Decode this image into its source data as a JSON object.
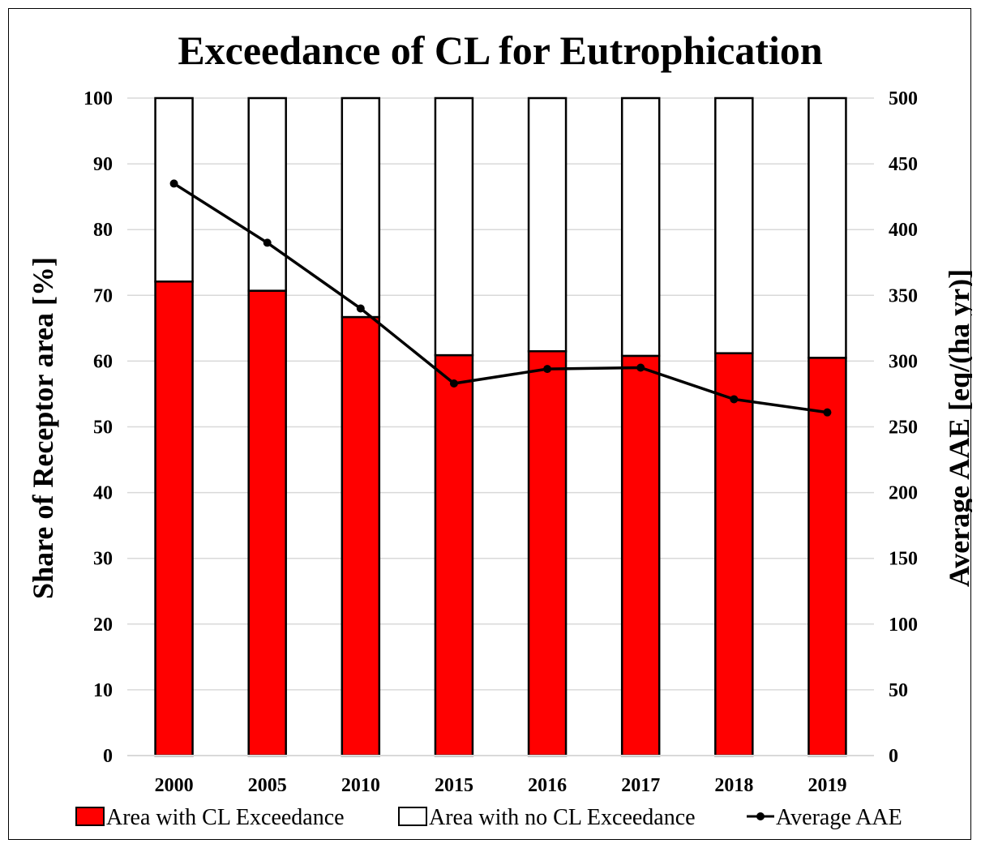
{
  "chart_data": {
    "type": "bar",
    "stacked": true,
    "title": "Exceedance of CL for Eutrophication",
    "categories": [
      "2000",
      "2005",
      "2010",
      "2015",
      "2016",
      "2017",
      "2018",
      "2019"
    ],
    "series": [
      {
        "name": "Area with CL Exceedance",
        "type": "bar",
        "axis": "left",
        "color": "#ff0000",
        "values": [
          72.1,
          70.7,
          66.7,
          60.9,
          61.5,
          60.8,
          61.2,
          60.5
        ]
      },
      {
        "name": "Area with no CL Exceedance",
        "type": "bar",
        "axis": "left",
        "color": "#ffffff",
        "values": [
          27.9,
          29.3,
          33.3,
          39.1,
          38.5,
          39.2,
          38.8,
          39.5
        ]
      },
      {
        "name": "Average AAE",
        "type": "line",
        "axis": "right",
        "color": "#000000",
        "values": [
          435,
          390,
          340,
          283,
          294,
          295,
          271,
          261
        ]
      }
    ],
    "ylabel": "Share of Receptor area [%]",
    "ylim": [
      0,
      100
    ],
    "yticks": [
      "0",
      "10",
      "20",
      "30",
      "40",
      "50",
      "60",
      "70",
      "80",
      "90",
      "100"
    ],
    "y2label": "Average AAE [eq/(ha yr)]",
    "y2lim": [
      0,
      500
    ],
    "y2ticks": [
      "0",
      "50",
      "100",
      "150",
      "200",
      "250",
      "300",
      "350",
      "400",
      "450",
      "500"
    ],
    "grid": true,
    "legend_position": "bottom"
  }
}
